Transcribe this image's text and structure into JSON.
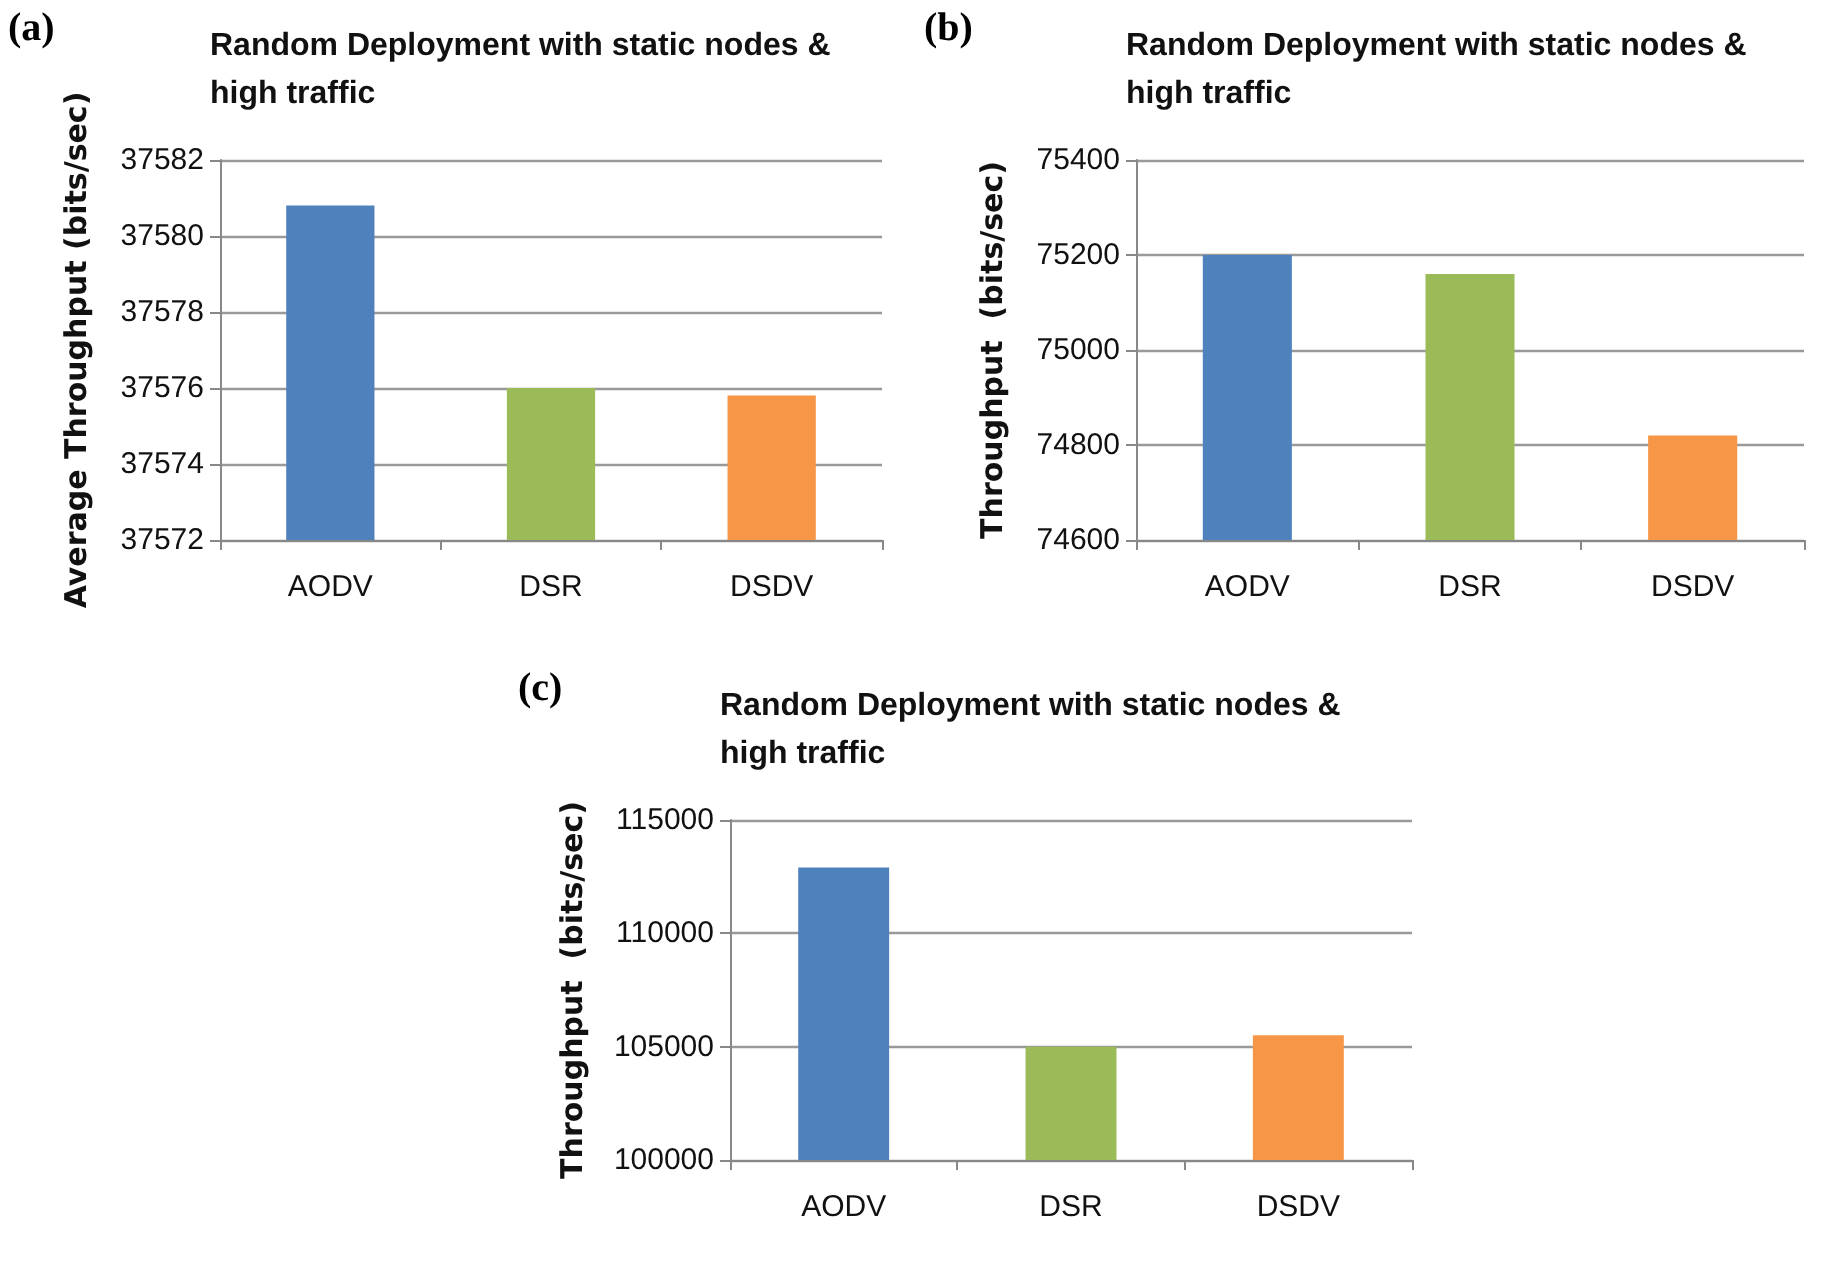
{
  "chart_data": [
    {
      "type": "bar",
      "title": "Random Deployment with static nodes & high traffic",
      "ylabel": "Average Throughput (bits/sec)",
      "annotations": [
        "(a)"
      ],
      "categories": [
        "AODV",
        "DSR",
        "DSDV"
      ],
      "values": [
        37580.8,
        37576.0,
        37575.8
      ],
      "colors": [
        "#4f81bd",
        "#9bbb59",
        "#f79646"
      ],
      "ylim": [
        37572,
        37582
      ],
      "yticks": [
        37572,
        37574,
        37576,
        37578,
        37580,
        37582
      ],
      "grid": "y"
    },
    {
      "type": "bar",
      "title": "Random Deployment with static nodes & high traffic",
      "ylabel": "Throughput  (bits/sec)",
      "annotations": [
        "(b)"
      ],
      "categories": [
        "AODV",
        "DSR",
        "DSDV"
      ],
      "values": [
        75200,
        75160,
        74820
      ],
      "colors": [
        "#4f81bd",
        "#9bbb59",
        "#f79646"
      ],
      "ylim": [
        74600,
        75400
      ],
      "yticks": [
        74600,
        74800,
        75000,
        75200,
        75400
      ],
      "grid": "y"
    },
    {
      "type": "bar",
      "title": "Random Deployment with static nodes & high traffic",
      "ylabel": "Throughput  (bits/sec)",
      "annotations": [
        "(c)"
      ],
      "categories": [
        "AODV",
        "DSR",
        "DSDV"
      ],
      "values": [
        112900,
        105000,
        105500
      ],
      "colors": [
        "#4f81bd",
        "#9bbb59",
        "#f79646"
      ],
      "ylim": [
        100000,
        115000
      ],
      "yticks": [
        100000,
        105000,
        110000,
        115000
      ],
      "grid": "y"
    }
  ]
}
